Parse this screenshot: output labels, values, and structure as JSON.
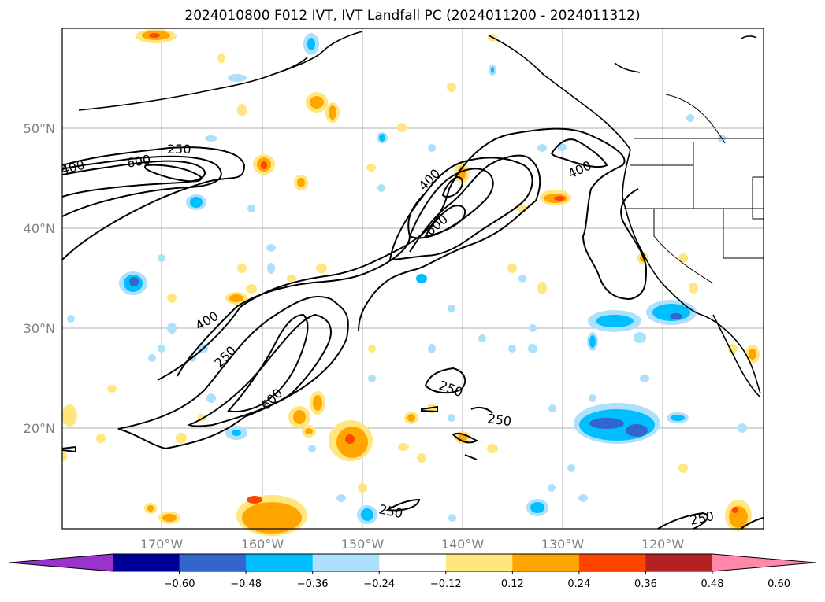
{
  "title": "2024010800 F012 IVT, IVT Landfall PC (2024011200 - 2024011312)",
  "lat_labels": [
    "50°N",
    "40°N",
    "30°N",
    "20°N"
  ],
  "lon_labels": [
    "170°W",
    "160°W",
    "150°W",
    "140°W",
    "130°W",
    "120°W"
  ],
  "colorbar": {
    "ticks": [
      "−0.60",
      "−0.48",
      "−0.36",
      "−0.24",
      "−0.12",
      "0.12",
      "0.24",
      "0.36",
      "0.48",
      "0.60"
    ],
    "colors": [
      "#9933cc",
      "#000099",
      "#3366cc",
      "#00bfff",
      "#ade0fa",
      "#ffffff",
      "#ffe680",
      "#ffa500",
      "#ff4500",
      "#b22222",
      "#ff88aa"
    ]
  },
  "contour_labels": [
    {
      "text": "250",
      "id": "c250a"
    },
    {
      "text": "600",
      "id": "c600a"
    },
    {
      "text": "400",
      "id": "c400a"
    },
    {
      "text": "400",
      "id": "c400b"
    },
    {
      "text": "600",
      "id": "c600b"
    },
    {
      "text": "400",
      "id": "c400c"
    },
    {
      "text": "400",
      "id": "c400d"
    },
    {
      "text": "250",
      "id": "c250b"
    },
    {
      "text": "600",
      "id": "c600c"
    },
    {
      "text": "250",
      "id": "c250c"
    },
    {
      "text": "250",
      "id": "c250d"
    },
    {
      "text": "250",
      "id": "c250e"
    },
    {
      "text": "250",
      "id": "c250f"
    }
  ]
}
